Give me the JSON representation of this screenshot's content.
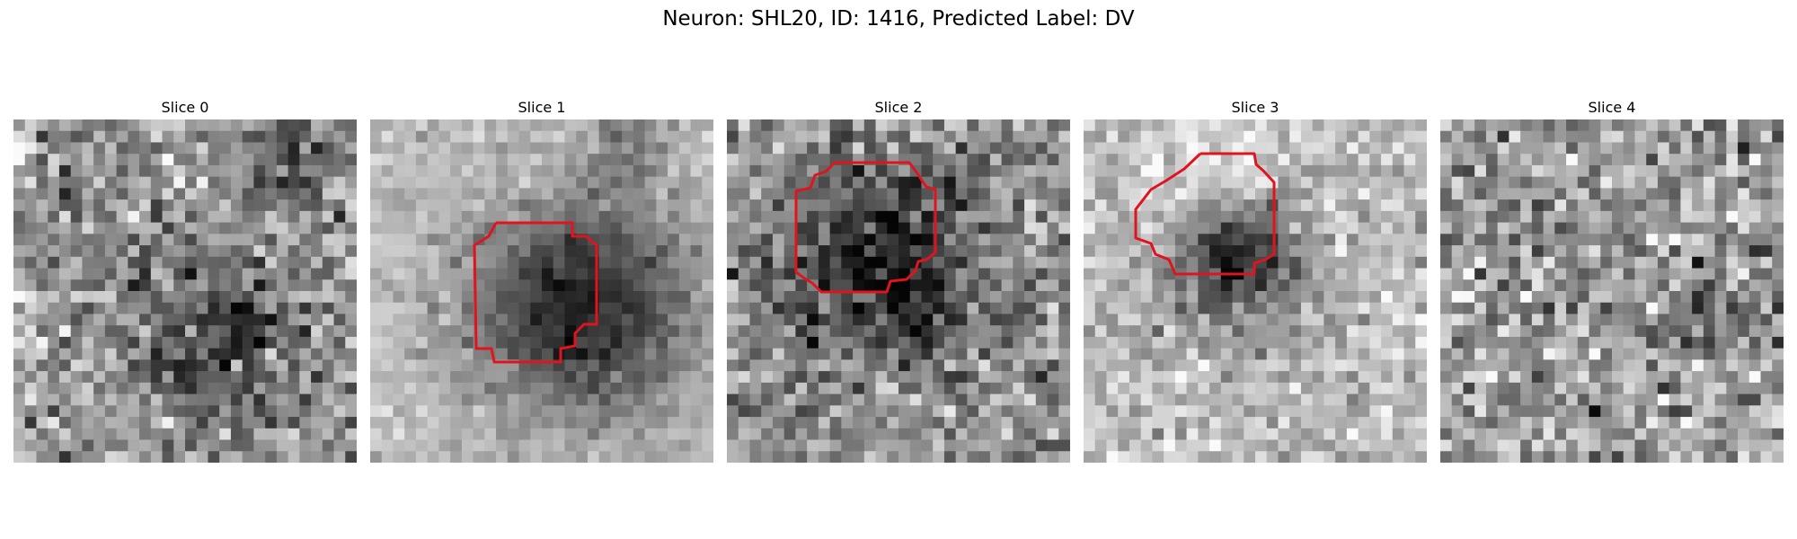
{
  "figure": {
    "title": "Neuron: SHL20, ID: 1416, Predicted Label: DV"
  },
  "slices": [
    {
      "label": "Slice 0",
      "has_contour": false
    },
    {
      "label": "Slice 1",
      "has_contour": true
    },
    {
      "label": "Slice 2",
      "has_contour": true
    },
    {
      "label": "Slice 3",
      "has_contour": true
    },
    {
      "label": "Slice 4",
      "has_contour": false
    }
  ],
  "colors": {
    "contour": "#e0141e",
    "background": "#ffffff"
  }
}
